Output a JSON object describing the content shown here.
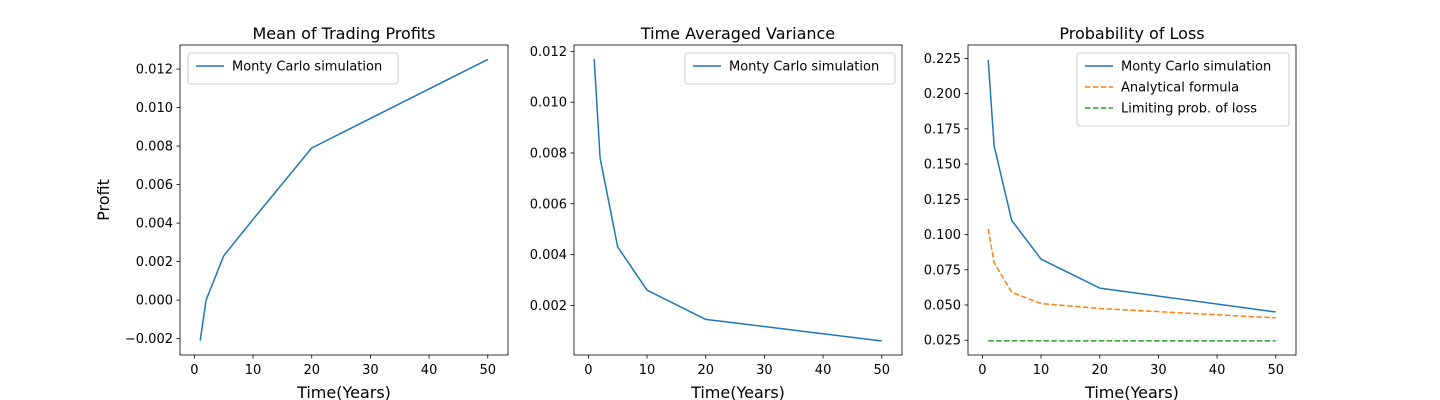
{
  "chart_data": [
    {
      "type": "line",
      "title": "Mean of Trading Profits",
      "xlabel": "Time(Years)",
      "ylabel": "Profit",
      "xlim": [
        -2.45,
        53.45
      ],
      "ylim": [
        -0.00285,
        0.01325
      ],
      "xticks": [
        0,
        10,
        20,
        30,
        40,
        50
      ],
      "xtick_labels": [
        "0",
        "10",
        "20",
        "30",
        "40",
        "50"
      ],
      "yticks": [
        -0.002,
        0.0,
        0.002,
        0.004,
        0.006,
        0.008,
        0.01,
        0.012
      ],
      "ytick_labels": [
        "−0.002",
        "0.000",
        "0.002",
        "0.004",
        "0.006",
        "0.008",
        "0.010",
        "0.012"
      ],
      "legend": "top-left",
      "series": [
        {
          "name": "Monty Carlo simulation",
          "color": "#1f77b4",
          "style": "solid",
          "x": [
            1,
            2,
            5,
            10,
            20,
            50
          ],
          "y": [
            -0.0021,
            0.0,
            0.0023,
            0.0042,
            0.0079,
            0.0125
          ]
        }
      ]
    },
    {
      "type": "line",
      "title": "Time Averaged Variance",
      "xlabel": "Time(Years)",
      "ylabel": "",
      "xlim": [
        -2.45,
        53.45
      ],
      "ylim": [
        5e-05,
        0.01225
      ],
      "xticks": [
        0,
        10,
        20,
        30,
        40,
        50
      ],
      "xtick_labels": [
        "0",
        "10",
        "20",
        "30",
        "40",
        "50"
      ],
      "yticks": [
        0.002,
        0.004,
        0.006,
        0.008,
        0.01,
        0.012
      ],
      "ytick_labels": [
        "0.002",
        "0.004",
        "0.006",
        "0.008",
        "0.010",
        "0.012"
      ],
      "legend": "top-right",
      "series": [
        {
          "name": "Monty Carlo simulation",
          "color": "#1f77b4",
          "style": "solid",
          "x": [
            1,
            2,
            5,
            10,
            20,
            50
          ],
          "y": [
            0.0117,
            0.0078,
            0.0043,
            0.0026,
            0.00145,
            0.0006
          ]
        }
      ]
    },
    {
      "type": "line",
      "title": "Probability of Loss",
      "xlabel": "Time(Years)",
      "ylabel": "",
      "xlim": [
        -2.45,
        53.45
      ],
      "ylim": [
        0.0145,
        0.2345
      ],
      "xticks": [
        0,
        10,
        20,
        30,
        40,
        50
      ],
      "xtick_labels": [
        "0",
        "10",
        "20",
        "30",
        "40",
        "50"
      ],
      "yticks": [
        0.025,
        0.05,
        0.075,
        0.1,
        0.125,
        0.15,
        0.175,
        0.2,
        0.225
      ],
      "ytick_labels": [
        "0.025",
        "0.050",
        "0.075",
        "0.100",
        "0.125",
        "0.150",
        "0.175",
        "0.200",
        "0.225"
      ],
      "legend": "top-right",
      "series": [
        {
          "name": "Monty Carlo simulation",
          "color": "#1f77b4",
          "style": "solid",
          "x": [
            1,
            2,
            5,
            10,
            20,
            50
          ],
          "y": [
            0.224,
            0.163,
            0.11,
            0.0825,
            0.062,
            0.045
          ]
        },
        {
          "name": "Analytical formula",
          "color": "#ff7f0e",
          "style": "dashed",
          "x": [
            1,
            2,
            5,
            10,
            20,
            50
          ],
          "y": [
            0.104,
            0.08,
            0.059,
            0.051,
            0.0475,
            0.0408
          ]
        },
        {
          "name": "Limiting prob. of loss",
          "color": "#2ca02c",
          "style": "dashed",
          "x": [
            1,
            2,
            5,
            10,
            20,
            50
          ],
          "y": [
            0.0245,
            0.0245,
            0.0245,
            0.0245,
            0.0245,
            0.0245
          ]
        }
      ]
    }
  ]
}
